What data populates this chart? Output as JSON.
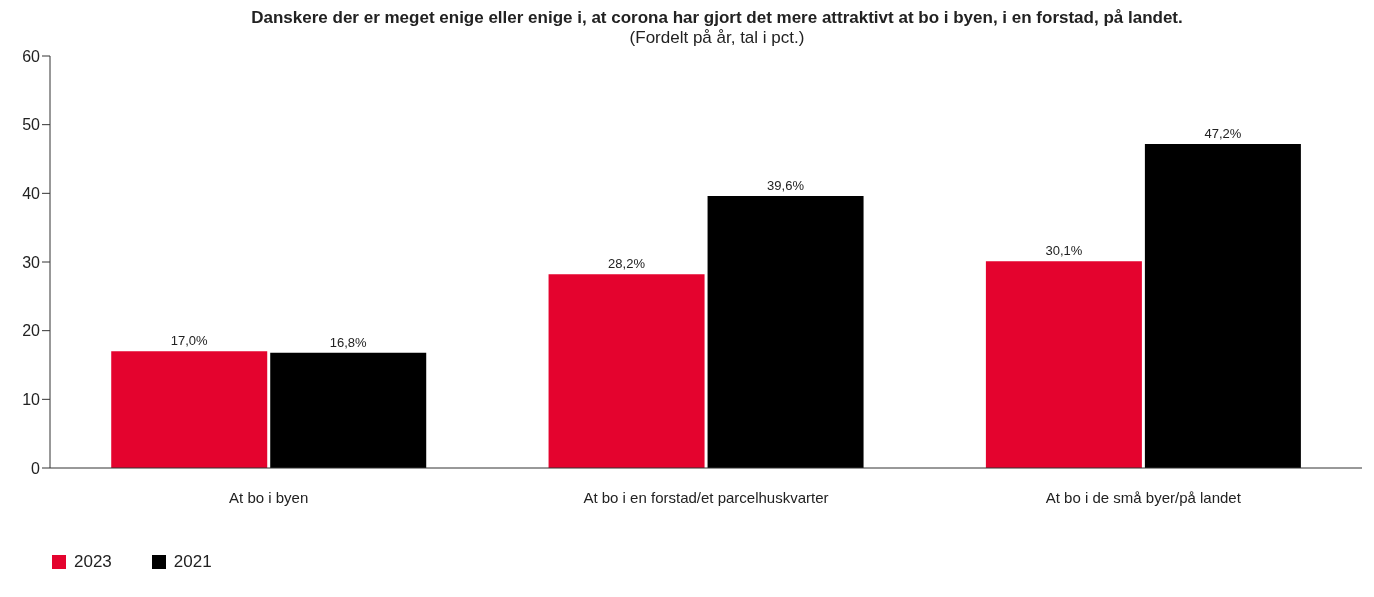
{
  "chart_data": {
    "type": "bar",
    "title": "Danskere der er meget enige eller enige i, at corona har gjort det mere attraktivt at bo i byen, i en forstad, på landet.",
    "subtitle": "(Fordelt på år, tal i pct.)",
    "categories": [
      "At bo i byen",
      "At bo i en forstad/et parcelhuskvarter",
      "At bo i de små byer/på landet"
    ],
    "series": [
      {
        "name": "2023",
        "color": "#e4032e",
        "values": [
          17.0,
          28.2,
          30.1
        ],
        "value_labels": [
          "17,0%",
          "28,2%",
          "30,1%"
        ]
      },
      {
        "name": "2021",
        "color": "#000000",
        "values": [
          16.8,
          39.6,
          47.2
        ],
        "value_labels": [
          "16,8%",
          "39,6%",
          "47,2%"
        ]
      }
    ],
    "ylim": [
      0,
      60
    ],
    "yticks": [
      0,
      10,
      20,
      30,
      40,
      50,
      60
    ],
    "legend": "bottom left"
  }
}
